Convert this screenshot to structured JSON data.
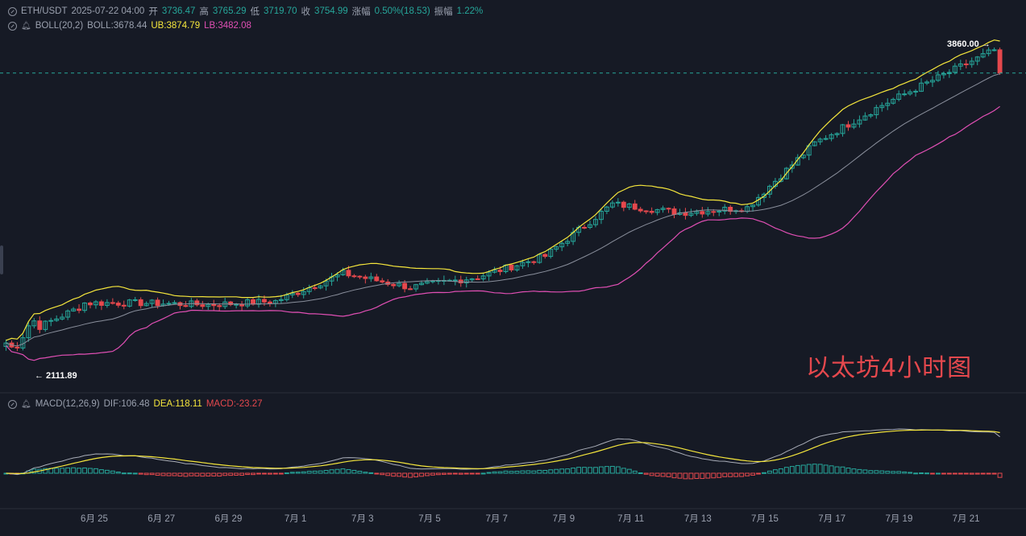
{
  "header": {
    "symbol": "ETH/USDT",
    "datetime": "2025-07-22 04:00",
    "open_label": "开",
    "open": "3736.47",
    "high_label": "高",
    "high": "3765.29",
    "low_label": "低",
    "low": "3719.70",
    "close_label": "收",
    "close": "3754.99",
    "change_label": "涨幅",
    "change": "0.50%(18.53)",
    "amp_label": "振幅",
    "amp": "1.22%"
  },
  "boll": {
    "name": "BOLL(20,2)",
    "mid_label": "BOLL:",
    "mid": "3678.44",
    "ub_label": "UB:",
    "ub": "3874.79",
    "lb_label": "LB:",
    "lb": "3482.08"
  },
  "macd": {
    "name": "MACD(12,26,9)",
    "dif_label": "DIF:",
    "dif": "106.48",
    "dea_label": "DEA:",
    "dea": "118.11",
    "macd_label": "MACD:",
    "macd": "-23.27"
  },
  "annotations": {
    "watermark": "以太坊4小时图",
    "high_marker": "3860.00 →",
    "low_marker": "← 2111.89"
  },
  "colors": {
    "background": "#161a25",
    "up": "#26a69a",
    "down": "#e5484d",
    "boll_mid": "#8a8f9c",
    "boll_ub": "#f5e63c",
    "boll_lb": "#e04fb4",
    "dif": "#a9adb8",
    "dea": "#f5e63c"
  },
  "chart_data": {
    "type": "candlestick",
    "symbol": "ETH/USDT",
    "interval": "4h",
    "x_ticks": [
      "6月 25",
      "6月 27",
      "6月 29",
      "7月 1",
      "7月 3",
      "7月 5",
      "7月 7",
      "7月 9",
      "7月 11",
      "7月 13",
      "7月 15",
      "7月 17",
      "7月 19",
      "7月 21"
    ],
    "ylim": [
      1950,
      3990
    ],
    "price_anchors": [
      {
        "date": "6月 23",
        "close": 2200
      },
      {
        "date": "6月 25",
        "close": 2430
      },
      {
        "date": "6月 27",
        "close": 2430
      },
      {
        "date": "6月 29",
        "close": 2420
      },
      {
        "date": "7月 1",
        "close": 2440
      },
      {
        "date": "7月 3",
        "close": 2600
      },
      {
        "date": "7月 5",
        "close": 2520
      },
      {
        "date": "7月 7",
        "close": 2580
      },
      {
        "date": "7月 9",
        "close": 2700
      },
      {
        "date": "7月 11",
        "close": 3000
      },
      {
        "date": "7月 13",
        "close": 2950
      },
      {
        "date": "7月 15",
        "close": 2980
      },
      {
        "date": "7月 17",
        "close": 3350
      },
      {
        "date": "7月 19",
        "close": 3570
      },
      {
        "date": "7月 21",
        "close": 3760
      }
    ],
    "last": {
      "open": 3736.47,
      "high": 3765.29,
      "low": 3719.7,
      "close": 3754.99
    },
    "range_high": 3860.0,
    "range_low": 2111.89,
    "bollinger": {
      "period": 20,
      "k": 2,
      "mid": 3678.44,
      "upper": 3874.79,
      "lower": 3482.08
    },
    "macd_params": {
      "fast": 12,
      "slow": 26,
      "signal": 9,
      "dif": 106.48,
      "dea": 118.11,
      "macd": -23.27
    },
    "grid": false
  }
}
